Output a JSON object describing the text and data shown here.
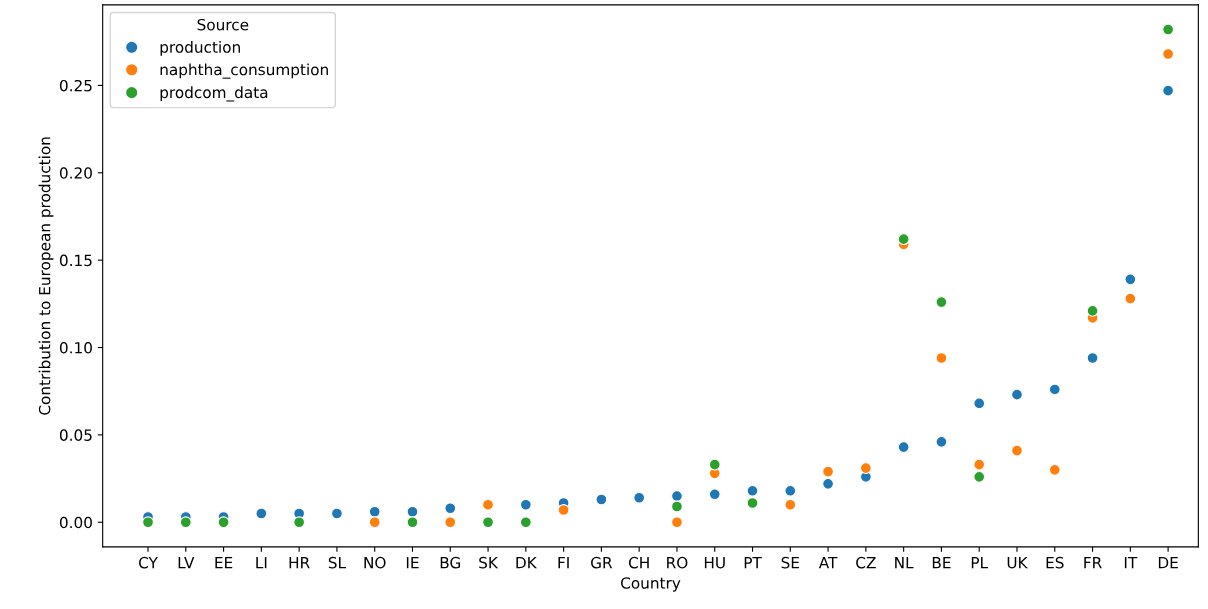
{
  "chart_data": {
    "type": "scatter",
    "xlabel": "Country",
    "ylabel": "Contribution to European production",
    "legend_title": "Source",
    "legend": "top left",
    "marker": "circle",
    "grid": false,
    "categories": [
      "CY",
      "LV",
      "EE",
      "LI",
      "HR",
      "SL",
      "NO",
      "IE",
      "BG",
      "SK",
      "DK",
      "FI",
      "GR",
      "CH",
      "RO",
      "HU",
      "PT",
      "SE",
      "AT",
      "CZ",
      "NL",
      "BE",
      "PL",
      "UK",
      "ES",
      "FR",
      "IT",
      "DE"
    ],
    "ylim": [
      -0.0141,
      0.2961
    ],
    "yticks": [
      {
        "value": 0,
        "label": "0.00"
      },
      {
        "value": 0.05,
        "label": "0.05"
      },
      {
        "value": 0.1,
        "label": "0.10"
      },
      {
        "value": 0.15,
        "label": "0.15"
      },
      {
        "value": 0.2,
        "label": "0.20"
      },
      {
        "value": 0.25,
        "label": "0.25"
      }
    ],
    "series": [
      {
        "name": "production",
        "color": "#1f77b4",
        "values": [
          0.003,
          0.003,
          0.003,
          0.005,
          0.005,
          0.005,
          0.006,
          0.006,
          0.008,
          null,
          0.01,
          0.011,
          0.013,
          0.014,
          0.015,
          0.016,
          0.018,
          0.018,
          0.022,
          0.026,
          0.043,
          0.046,
          0.068,
          0.073,
          0.076,
          0.094,
          0.139,
          0.247
        ]
      },
      {
        "name": "naphtha_consumption",
        "color": "#ff7f0e",
        "values": [
          null,
          null,
          null,
          null,
          null,
          null,
          0,
          null,
          0,
          0.01,
          null,
          0.007,
          null,
          null,
          0,
          0.028,
          null,
          0.01,
          0.029,
          0.031,
          0.159,
          0.094,
          0.033,
          0.041,
          0.03,
          0.117,
          0.128,
          0.268
        ]
      },
      {
        "name": "prodcom_data",
        "color": "#2ca02c",
        "values": [
          0,
          0,
          0,
          null,
          0,
          null,
          null,
          0,
          null,
          0,
          0,
          null,
          null,
          null,
          0.009,
          0.033,
          0.011,
          null,
          null,
          null,
          0.162,
          0.126,
          0.026,
          null,
          null,
          0.121,
          null,
          0.282
        ]
      }
    ]
  }
}
